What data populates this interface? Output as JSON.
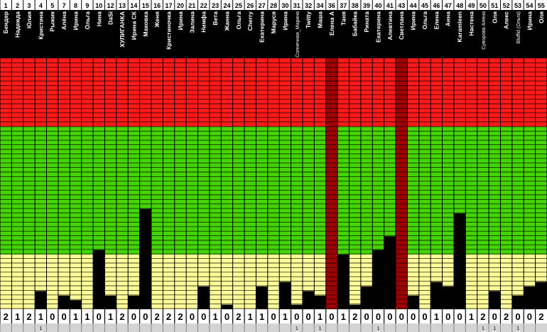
{
  "chart_data": {
    "type": "bar",
    "title": "",
    "xlabel": "",
    "ylabel": "",
    "grid": true,
    "ylim": [
      0,
      55
    ],
    "bands": [
      {
        "name": "red",
        "from": 40,
        "to": 55,
        "color": "#ff1a1a"
      },
      {
        "name": "green",
        "from": 12,
        "to": 40,
        "color": "#44d400"
      },
      {
        "name": "yellow",
        "from": 0,
        "to": 12,
        "color": "#ffff99"
      }
    ],
    "columns": [
      {
        "num": "1",
        "name": "Бендер",
        "value": 0,
        "bottom": "2",
        "extra": ""
      },
      {
        "num": "2",
        "name": "Надежда",
        "value": 0,
        "bottom": "1",
        "extra": ""
      },
      {
        "num": "3",
        "name": "Юлия",
        "value": 0,
        "bottom": "2",
        "extra": ""
      },
      {
        "num": "4",
        "name": "Кристина",
        "value": 4,
        "bottom": "1",
        "extra": "1"
      },
      {
        "num": "5",
        "name": "Рыжик",
        "value": 0,
        "bottom": "0",
        "extra": ""
      },
      {
        "num": "7",
        "name": "Алёна",
        "value": 3,
        "bottom": "0",
        "extra": ""
      },
      {
        "num": "8",
        "name": "Ирина",
        "value": 2,
        "bottom": "1",
        "extra": ""
      },
      {
        "num": "9",
        "name": "Ольга",
        "value": 0,
        "bottom": "1",
        "extra": ""
      },
      {
        "num": "10",
        "name": "Нина",
        "value": 13,
        "bottom": "0",
        "extra": ""
      },
      {
        "num": "12",
        "name": "DaSi",
        "value": 3,
        "bottom": "1",
        "extra": ""
      },
      {
        "num": "13",
        "name": "ХУЛИГАНКА",
        "value": 0,
        "bottom": "2",
        "extra": ""
      },
      {
        "num": "14",
        "name": "Ирина СК",
        "value": 3,
        "bottom": "0",
        "extra": ""
      },
      {
        "num": "15",
        "name": "Маковка",
        "value": 22,
        "bottom": "0",
        "extra": ""
      },
      {
        "num": "16",
        "name": "Женя",
        "value": 0,
        "bottom": "2",
        "extra": ""
      },
      {
        "num": "17",
        "name": "Кристиночка",
        "value": 0,
        "bottom": "2",
        "extra": ""
      },
      {
        "num": "20",
        "name": "Ирина",
        "value": 0,
        "bottom": "2",
        "extra": ""
      },
      {
        "num": "21",
        "name": "Залина",
        "value": 0,
        "bottom": "0",
        "extra": ""
      },
      {
        "num": "22",
        "name": "Нимфа",
        "value": 5,
        "bottom": "0",
        "extra": ""
      },
      {
        "num": "23",
        "name": "Вета",
        "value": 0,
        "bottom": "1",
        "extra": ""
      },
      {
        "num": "24",
        "name": "Жанна",
        "value": 1,
        "bottom": "0",
        "extra": ""
      },
      {
        "num": "25",
        "name": "Ольга",
        "value": 0,
        "bottom": "2",
        "extra": ""
      },
      {
        "num": "26",
        "name": "Cherry",
        "value": 0,
        "bottom": "1",
        "extra": ""
      },
      {
        "num": "27",
        "name": "Екатерина",
        "value": 5,
        "bottom": "1",
        "extra": ""
      },
      {
        "num": "28",
        "name": "Маруся",
        "value": 0,
        "bottom": "0",
        "extra": ""
      },
      {
        "num": "30",
        "name": "Ирина",
        "value": 6,
        "bottom": "1",
        "extra": ""
      },
      {
        "num": "31",
        "name": "Солнечная_Марина",
        "value": 1,
        "bottom": "0",
        "extra": "1"
      },
      {
        "num": "32",
        "name": "Twitty",
        "value": 4,
        "bottom": "0",
        "extra": ""
      },
      {
        "num": "34",
        "name": "Маша",
        "value": 3,
        "bottom": "1",
        "extra": "1"
      },
      {
        "num": "36",
        "name": "Елена А",
        "value": 0,
        "bottom": "0",
        "extra": ""
      },
      {
        "num": "37",
        "name": "Таня",
        "value": 12,
        "bottom": "1",
        "extra": ""
      },
      {
        "num": "38",
        "name": "Бабайка",
        "value": 1,
        "bottom": "2",
        "extra": ""
      },
      {
        "num": "39",
        "name": "Рината",
        "value": 5,
        "bottom": "0",
        "extra": ""
      },
      {
        "num": "40",
        "name": "Екатерина",
        "value": 13,
        "bottom": "0",
        "extra": "1"
      },
      {
        "num": "41",
        "name": "Алевтина",
        "value": 16,
        "bottom": "0",
        "extra": ""
      },
      {
        "num": "43",
        "name": "Светлана",
        "value": 0,
        "bottom": "0",
        "extra": ""
      },
      {
        "num": "44",
        "name": "Ирина",
        "value": 3,
        "bottom": "0",
        "extra": ""
      },
      {
        "num": "45",
        "name": "Ольга",
        "value": 0,
        "bottom": "0",
        "extra": ""
      },
      {
        "num": "46",
        "name": "Елена",
        "value": 6,
        "bottom": "1",
        "extra": ""
      },
      {
        "num": "47",
        "name": "Анна",
        "value": 5,
        "bottom": "0",
        "extra": ""
      },
      {
        "num": "48",
        "name": "Karamleen",
        "value": 21,
        "bottom": "0",
        "extra": ""
      },
      {
        "num": "49",
        "name": "Настена",
        "value": 0,
        "bottom": "1",
        "extra": ""
      },
      {
        "num": "50",
        "name": "Суворова Алена",
        "value": 0,
        "bottom": "2",
        "extra": "1"
      },
      {
        "num": "51",
        "name": "Оля",
        "value": 4,
        "bottom": "0",
        "extra": "1"
      },
      {
        "num": "52",
        "name": "Алекс",
        "value": 0,
        "bottom": "2",
        "extra": ""
      },
      {
        "num": "53",
        "name": "Bluffid (Ольга)",
        "value": 3,
        "bottom": "0",
        "extra": "1"
      },
      {
        "num": "54",
        "name": "Ирина",
        "value": 5,
        "bottom": "0",
        "extra": ""
      },
      {
        "num": "55",
        "name": "Оля",
        "value": 6,
        "bottom": "2",
        "extra": ""
      }
    ],
    "highlighted": [
      "36",
      "43"
    ],
    "highlight_color": "#a00000"
  }
}
